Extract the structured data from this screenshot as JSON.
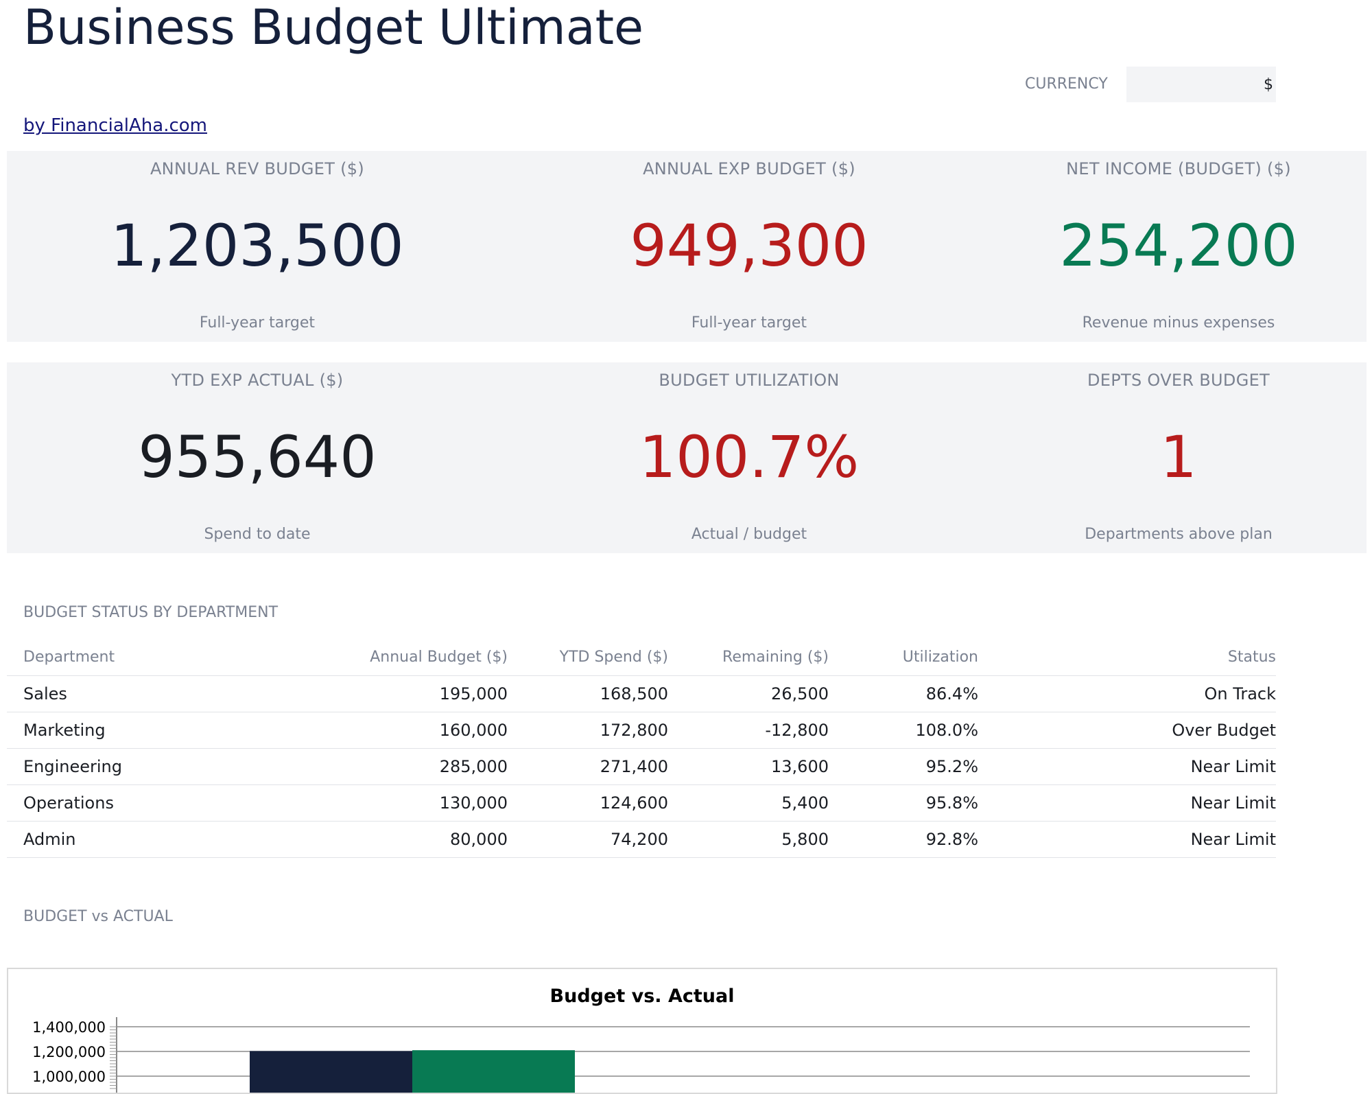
{
  "header": {
    "title": "Business Budget Ultimate",
    "currency_label": "CURRENCY",
    "currency_value": "$",
    "byline": "by FinancialAha.com"
  },
  "kpis_row1": [
    {
      "label": "ANNUAL REV BUDGET ($)",
      "value": "1,203,500",
      "sub": "Full-year target",
      "color": "#15203b"
    },
    {
      "label": "ANNUAL EXP BUDGET ($)",
      "value": "949,300",
      "sub": "Full-year target",
      "color": "#b71c1c"
    },
    {
      "label": "NET INCOME (BUDGET) ($)",
      "value": "254,200",
      "sub": "Revenue minus expenses",
      "color": "#087a53"
    }
  ],
  "kpis_row2": [
    {
      "label": "YTD EXP ACTUAL ($)",
      "value": "955,640",
      "sub": "Spend to date",
      "color": "#1a1d23"
    },
    {
      "label": "BUDGET UTILIZATION",
      "value": "100.7%",
      "sub": "Actual / budget",
      "color": "#b71c1c"
    },
    {
      "label": "DEPTS OVER BUDGET",
      "value": "1",
      "sub": "Departments above plan",
      "color": "#b71c1c"
    }
  ],
  "dept_section": {
    "title": "BUDGET STATUS BY DEPARTMENT",
    "columns": [
      "Department",
      "Annual Budget ($)",
      "YTD Spend ($)",
      "Remaining ($)",
      "Utilization",
      "Status"
    ],
    "rows": [
      [
        "Sales",
        "195,000",
        "168,500",
        "26,500",
        "86.4%",
        "On Track"
      ],
      [
        "Marketing",
        "160,000",
        "172,800",
        "-12,800",
        "108.0%",
        "Over Budget"
      ],
      [
        "Engineering",
        "285,000",
        "271,400",
        "13,600",
        "95.2%",
        "Near Limit"
      ],
      [
        "Operations",
        "130,000",
        "124,600",
        "5,400",
        "95.8%",
        "Near Limit"
      ],
      [
        "Admin",
        "80,000",
        "74,200",
        "5,800",
        "92.8%",
        "Near Limit"
      ]
    ]
  },
  "chart_section": {
    "title": "BUDGET vs ACTUAL"
  },
  "chart_data": {
    "type": "bar",
    "title": "Budget vs. Actual",
    "categories": [
      ""
    ],
    "series": [
      {
        "values": [
          1203500
        ],
        "color": "#15203b"
      },
      {
        "values": [
          1210000
        ],
        "color": "#087a53"
      }
    ],
    "yticks": [
      "1,400,000",
      "1,200,000",
      "1,000,000"
    ],
    "ytick_values": [
      1400000,
      1200000,
      1000000
    ],
    "ylim": [
      1000000,
      1400000
    ],
    "grid": true
  }
}
